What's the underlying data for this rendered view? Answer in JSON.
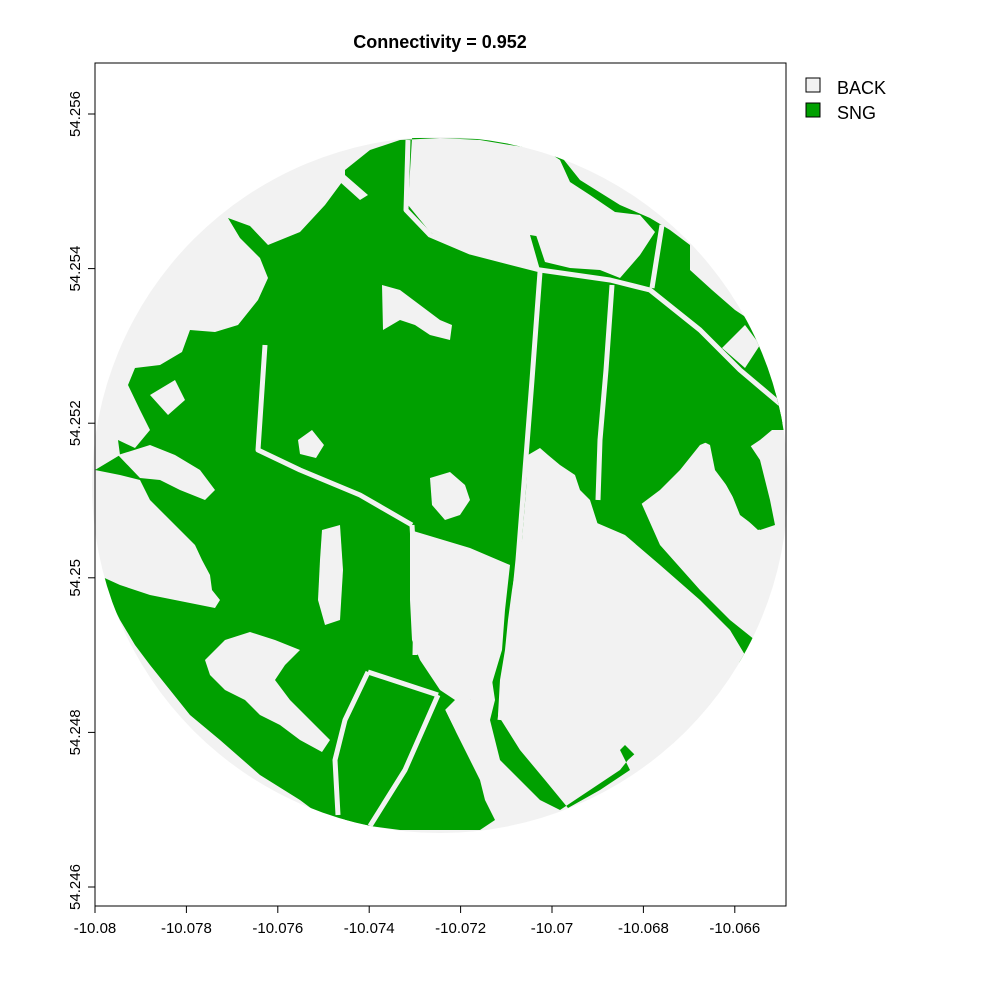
{
  "title": "Connectivity = 0.952",
  "axes": {
    "x_ticks": [
      "-10.08",
      "-10.078",
      "-10.076",
      "-10.074",
      "-10.072",
      "-10.07",
      "-10.068",
      "-10.066"
    ],
    "y_ticks": [
      "54.246",
      "54.248",
      "54.25",
      "54.252",
      "54.254",
      "54.256"
    ]
  },
  "legend": {
    "items": [
      {
        "label": "BACK",
        "color": "#f2f2f2"
      },
      {
        "label": "SNG",
        "color": "#00a000"
      }
    ]
  },
  "colors": {
    "background_class": "#f2f2f2",
    "sng_class": "#00a000",
    "frame": "#000000"
  }
}
